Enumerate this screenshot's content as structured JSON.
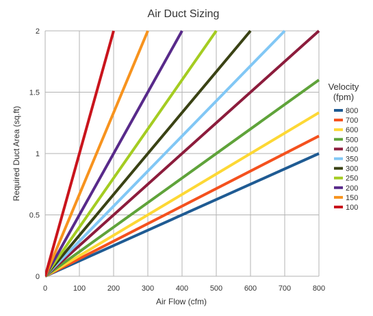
{
  "chart_data": {
    "type": "line",
    "title": "Air Duct Sizing",
    "xlabel": "Air Flow (cfm)",
    "ylabel": "Required Duct Area (sq.ft)",
    "xlim": [
      0,
      800
    ],
    "ylim": [
      0,
      2
    ],
    "xticks": [
      "0",
      "100",
      "200",
      "300",
      "400",
      "500",
      "600",
      "700",
      "800"
    ],
    "yticks": [
      "0",
      "0.5",
      "1",
      "1.5",
      "2"
    ],
    "grid": true,
    "legend_title": "Velocity (fpm)",
    "legend_title_lines": [
      "Velocity",
      "(fpm)"
    ],
    "legend_position": "right",
    "x": [
      0,
      800
    ],
    "series": [
      {
        "name": "800",
        "velocity": 800,
        "color": "#1f5b93",
        "values": [
          0,
          1.0
        ]
      },
      {
        "name": "700",
        "velocity": 700,
        "color": "#f4511e",
        "values": [
          0,
          1.14
        ]
      },
      {
        "name": "600",
        "velocity": 600,
        "color": "#fdd835",
        "values": [
          0,
          1.33
        ]
      },
      {
        "name": "500",
        "velocity": 500,
        "color": "#5fa33a",
        "values": [
          0,
          1.6
        ]
      },
      {
        "name": "400",
        "velocity": 400,
        "color": "#8c1c3c",
        "values": [
          0,
          2.0
        ]
      },
      {
        "name": "350",
        "velocity": 350,
        "color": "#81c7f5",
        "values": [
          0,
          2.0
        ]
      },
      {
        "name": "300",
        "velocity": 300,
        "color": "#3a4214",
        "values": [
          0,
          2.0
        ]
      },
      {
        "name": "250",
        "velocity": 250,
        "color": "#a4cc21",
        "values": [
          0,
          2.0
        ]
      },
      {
        "name": "200",
        "velocity": 200,
        "color": "#582a8a",
        "values": [
          0,
          2.0
        ]
      },
      {
        "name": "150",
        "velocity": 150,
        "color": "#f7931e",
        "values": [
          0,
          2.0
        ]
      },
      {
        "name": "100",
        "velocity": 100,
        "color": "#c9141c",
        "values": [
          0,
          2.0
        ]
      }
    ]
  }
}
